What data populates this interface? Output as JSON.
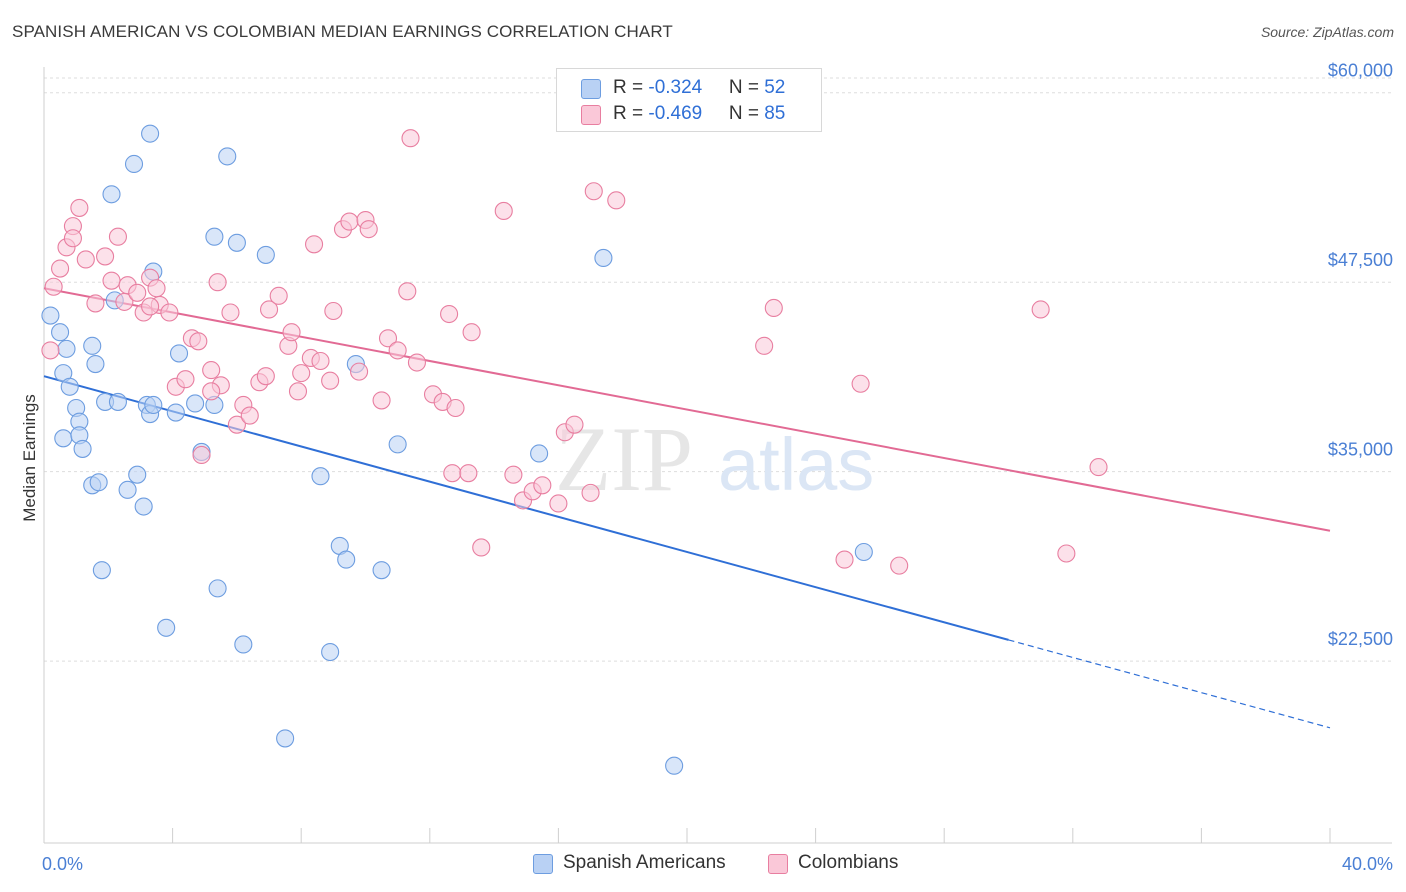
{
  "title": "SPANISH AMERICAN VS COLOMBIAN MEDIAN EARNINGS CORRELATION CHART",
  "source": "Source: ZipAtlas.com",
  "watermark": {
    "part1": "ZIP",
    "part2": "atlas"
  },
  "legend_top": [
    {
      "r_label": "R = ",
      "r_value": "-0.324",
      "n_label": "N = ",
      "n_value": "52",
      "swatch_fill": "#b9d1f4",
      "swatch_stroke": "#6d9de0"
    },
    {
      "r_label": "R = ",
      "r_value": "-0.469",
      "n_label": "N = ",
      "n_value": "85",
      "swatch_fill": "#fac8d8",
      "swatch_stroke": "#e87ea0"
    }
  ],
  "legend_bottom": [
    {
      "label": "Spanish Americans",
      "swatch_fill": "#b9d1f4",
      "swatch_stroke": "#6d9de0"
    },
    {
      "label": "Colombians",
      "swatch_fill": "#fac8d8",
      "swatch_stroke": "#e87ea0"
    }
  ],
  "chart_data": {
    "type": "scatter",
    "title": "SPANISH AMERICAN VS COLOMBIAN MEDIAN EARNINGS CORRELATION CHART",
    "xlabel": "",
    "ylabel": "Median Earnings",
    "x_tick_labels": [
      "0.0%",
      "40.0%"
    ],
    "y_tick_labels": [
      "$22,500",
      "$35,000",
      "$47,500",
      "$60,000"
    ],
    "y_ticks": [
      22500,
      35000,
      47500,
      60000
    ],
    "xlim": [
      0,
      40
    ],
    "ylim": [
      10500,
      61500
    ],
    "grid": true,
    "colors": {
      "blue": "#2f6fd6",
      "pink": "#e26a94",
      "axis_text": "#4a7fd4"
    },
    "series": [
      {
        "name": "Spanish Americans",
        "color": "#6d9de0",
        "fill": "#b9d1f4",
        "trend": {
          "x_start": 0,
          "x_solid_end": 30,
          "x_end": 40,
          "y_start": 41300,
          "slope": -580
        },
        "points": [
          [
            0.2,
            45300
          ],
          [
            0.5,
            44200
          ],
          [
            0.7,
            43100
          ],
          [
            0.6,
            41500
          ],
          [
            0.8,
            40600
          ],
          [
            1.0,
            39200
          ],
          [
            1.1,
            38300
          ],
          [
            0.6,
            37200
          ],
          [
            1.1,
            37400
          ],
          [
            1.2,
            36500
          ],
          [
            1.5,
            34100
          ],
          [
            1.7,
            34300
          ],
          [
            1.6,
            42100
          ],
          [
            1.5,
            43300
          ],
          [
            1.9,
            39600
          ],
          [
            2.3,
            39600
          ],
          [
            2.2,
            46300
          ],
          [
            2.1,
            53300
          ],
          [
            2.8,
            55300
          ],
          [
            3.3,
            57300
          ],
          [
            2.6,
            33800
          ],
          [
            2.9,
            34800
          ],
          [
            3.1,
            32700
          ],
          [
            3.2,
            39400
          ],
          [
            3.3,
            38800
          ],
          [
            3.4,
            39400
          ],
          [
            4.1,
            38900
          ],
          [
            4.2,
            42800
          ],
          [
            3.4,
            48200
          ],
          [
            4.9,
            36300
          ],
          [
            4.7,
            39500
          ],
          [
            5.3,
            39400
          ],
          [
            5.3,
            50500
          ],
          [
            5.7,
            55800
          ],
          [
            6.0,
            50100
          ],
          [
            6.9,
            49300
          ],
          [
            5.4,
            27300
          ],
          [
            1.8,
            28500
          ],
          [
            3.8,
            24700
          ],
          [
            6.2,
            23600
          ],
          [
            7.5,
            17400
          ],
          [
            8.9,
            23100
          ],
          [
            8.6,
            34700
          ],
          [
            9.2,
            30100
          ],
          [
            9.4,
            29200
          ],
          [
            9.7,
            42100
          ],
          [
            10.5,
            28500
          ],
          [
            11.0,
            36800
          ],
          [
            15.4,
            36200
          ],
          [
            17.4,
            49100
          ],
          [
            19.6,
            15600
          ],
          [
            25.5,
            29700
          ]
        ]
      },
      {
        "name": "Colombians",
        "color": "#e87ea0",
        "fill": "#fac8d8",
        "trend": {
          "x_start": 0,
          "x_solid_end": 40,
          "x_end": 40,
          "y_start": 47100,
          "slope": -400
        },
        "points": [
          [
            0.2,
            43000
          ],
          [
            0.3,
            47200
          ],
          [
            0.5,
            48400
          ],
          [
            0.7,
            49800
          ],
          [
            0.9,
            51200
          ],
          [
            1.1,
            52400
          ],
          [
            1.3,
            49000
          ],
          [
            1.6,
            46100
          ],
          [
            1.9,
            49200
          ],
          [
            2.1,
            47600
          ],
          [
            2.3,
            50500
          ],
          [
            2.5,
            46200
          ],
          [
            2.6,
            47300
          ],
          [
            2.9,
            46800
          ],
          [
            3.1,
            45500
          ],
          [
            3.3,
            47800
          ],
          [
            3.5,
            47100
          ],
          [
            3.6,
            46000
          ],
          [
            3.9,
            45500
          ],
          [
            4.1,
            40600
          ],
          [
            4.4,
            41100
          ],
          [
            4.6,
            43800
          ],
          [
            4.8,
            43600
          ],
          [
            4.9,
            36100
          ],
          [
            5.2,
            41700
          ],
          [
            5.4,
            47500
          ],
          [
            5.5,
            40700
          ],
          [
            5.8,
            45500
          ],
          [
            6.0,
            38100
          ],
          [
            6.2,
            39400
          ],
          [
            6.4,
            38700
          ],
          [
            6.7,
            40900
          ],
          [
            6.9,
            41300
          ],
          [
            7.0,
            45700
          ],
          [
            7.3,
            46600
          ],
          [
            7.6,
            43300
          ],
          [
            7.7,
            44200
          ],
          [
            7.9,
            40300
          ],
          [
            8.0,
            41500
          ],
          [
            8.3,
            42500
          ],
          [
            8.4,
            50000
          ],
          [
            8.6,
            42300
          ],
          [
            8.9,
            41000
          ],
          [
            9.0,
            45600
          ],
          [
            9.3,
            51000
          ],
          [
            9.5,
            51500
          ],
          [
            9.8,
            41600
          ],
          [
            10.0,
            51600
          ],
          [
            10.1,
            51000
          ],
          [
            10.5,
            39700
          ],
          [
            10.7,
            43800
          ],
          [
            11.0,
            43000
          ],
          [
            11.3,
            46900
          ],
          [
            11.4,
            57000
          ],
          [
            11.6,
            42200
          ],
          [
            12.1,
            40100
          ],
          [
            12.4,
            39600
          ],
          [
            12.6,
            45400
          ],
          [
            12.8,
            39200
          ],
          [
            13.3,
            44200
          ],
          [
            12.7,
            34900
          ],
          [
            13.2,
            34900
          ],
          [
            13.6,
            30000
          ],
          [
            14.3,
            52200
          ],
          [
            14.6,
            34800
          ],
          [
            14.9,
            33100
          ],
          [
            15.2,
            33700
          ],
          [
            15.5,
            34100
          ],
          [
            16.0,
            32900
          ],
          [
            16.2,
            37600
          ],
          [
            16.5,
            38100
          ],
          [
            17.0,
            33600
          ],
          [
            17.1,
            53500
          ],
          [
            17.8,
            52900
          ],
          [
            22.4,
            43300
          ],
          [
            22.7,
            45800
          ],
          [
            24.9,
            29200
          ],
          [
            25.4,
            40800
          ],
          [
            26.6,
            28800
          ],
          [
            31.0,
            45700
          ],
          [
            31.8,
            29600
          ],
          [
            32.8,
            35300
          ],
          [
            0.9,
            50400
          ],
          [
            3.3,
            45900
          ],
          [
            5.2,
            40300
          ]
        ]
      }
    ]
  }
}
